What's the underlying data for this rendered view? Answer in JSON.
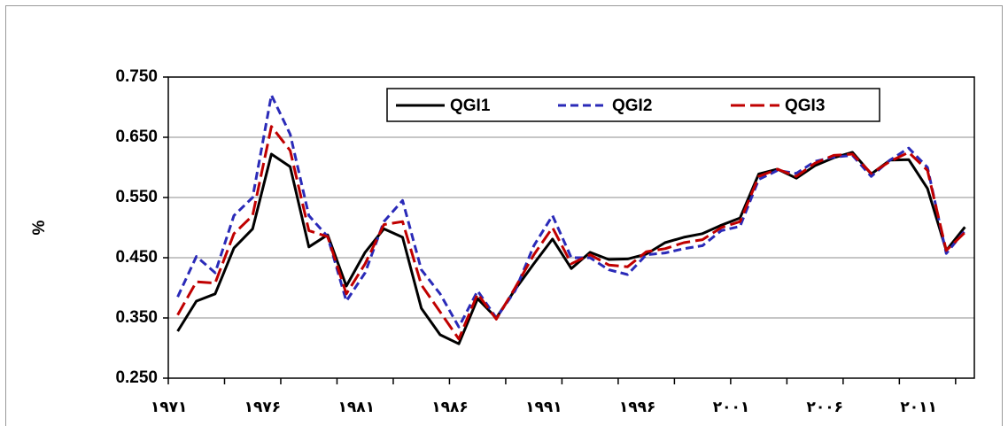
{
  "chart_data": {
    "type": "line",
    "y_label": "%",
    "categories": [
      "۱۹۷۱",
      null,
      null,
      null,
      null,
      "۱۹۷۶",
      null,
      null,
      null,
      null,
      "۱۹۸۱",
      null,
      null,
      null,
      null,
      "۱۹۸۶",
      null,
      null,
      null,
      null,
      "۱۹۹۱",
      null,
      null,
      null,
      null,
      "۱۹۹۶",
      null,
      null,
      null,
      null,
      "۲۰۰۱",
      null,
      null,
      null,
      null,
      "۲۰۰۶",
      null,
      null,
      null,
      null,
      "۲۰۱۱",
      null,
      null
    ],
    "ylim": [
      0.25,
      0.75
    ],
    "yticks": [
      {
        "value": 0.25,
        "label": "0.250"
      },
      {
        "value": 0.35,
        "label": "0.350"
      },
      {
        "value": 0.45,
        "label": "0.450"
      },
      {
        "value": 0.55,
        "label": "0.550"
      },
      {
        "value": 0.65,
        "label": "0.650"
      },
      {
        "value": 0.75,
        "label": "0.750"
      }
    ],
    "grid": true,
    "legend": "top",
    "series": [
      {
        "name": "QGI1",
        "color": "#000000",
        "dash": "none",
        "values": [
          0.328,
          0.378,
          0.39,
          0.466,
          0.498,
          0.622,
          0.601,
          0.468,
          0.488,
          0.403,
          0.459,
          0.498,
          0.484,
          0.366,
          0.322,
          0.307,
          0.382,
          0.35,
          0.397,
          0.44,
          0.481,
          0.432,
          0.459,
          0.447,
          0.448,
          0.456,
          0.475,
          0.484,
          0.49,
          0.504,
          0.516,
          0.589,
          0.597,
          0.582,
          0.603,
          0.616,
          0.625,
          0.589,
          0.612,
          0.613,
          0.565,
          0.462,
          0.501
        ]
      },
      {
        "name": "QGI2",
        "color": "#2a2ab8",
        "dash": "9,5",
        "values": [
          0.385,
          0.452,
          0.425,
          0.52,
          0.55,
          0.72,
          0.655,
          0.52,
          0.485,
          0.378,
          0.425,
          0.51,
          0.545,
          0.43,
          0.39,
          0.335,
          0.395,
          0.35,
          0.395,
          0.47,
          0.52,
          0.45,
          0.45,
          0.43,
          0.422,
          0.455,
          0.458,
          0.465,
          0.47,
          0.495,
          0.502,
          0.58,
          0.595,
          0.59,
          0.61,
          0.617,
          0.62,
          0.585,
          0.612,
          0.632,
          0.6,
          0.457,
          0.495
        ]
      },
      {
        "name": "QGI3",
        "color": "#c00000",
        "dash": "16,6",
        "values": [
          0.355,
          0.41,
          0.408,
          0.49,
          0.52,
          0.668,
          0.628,
          0.495,
          0.485,
          0.39,
          0.44,
          0.505,
          0.51,
          0.405,
          0.36,
          0.315,
          0.39,
          0.348,
          0.4,
          0.455,
          0.5,
          0.44,
          0.455,
          0.438,
          0.435,
          0.46,
          0.465,
          0.475,
          0.48,
          0.5,
          0.51,
          0.585,
          0.597,
          0.585,
          0.607,
          0.62,
          0.622,
          0.59,
          0.61,
          0.625,
          0.595,
          0.462,
          0.492
        ]
      }
    ]
  }
}
